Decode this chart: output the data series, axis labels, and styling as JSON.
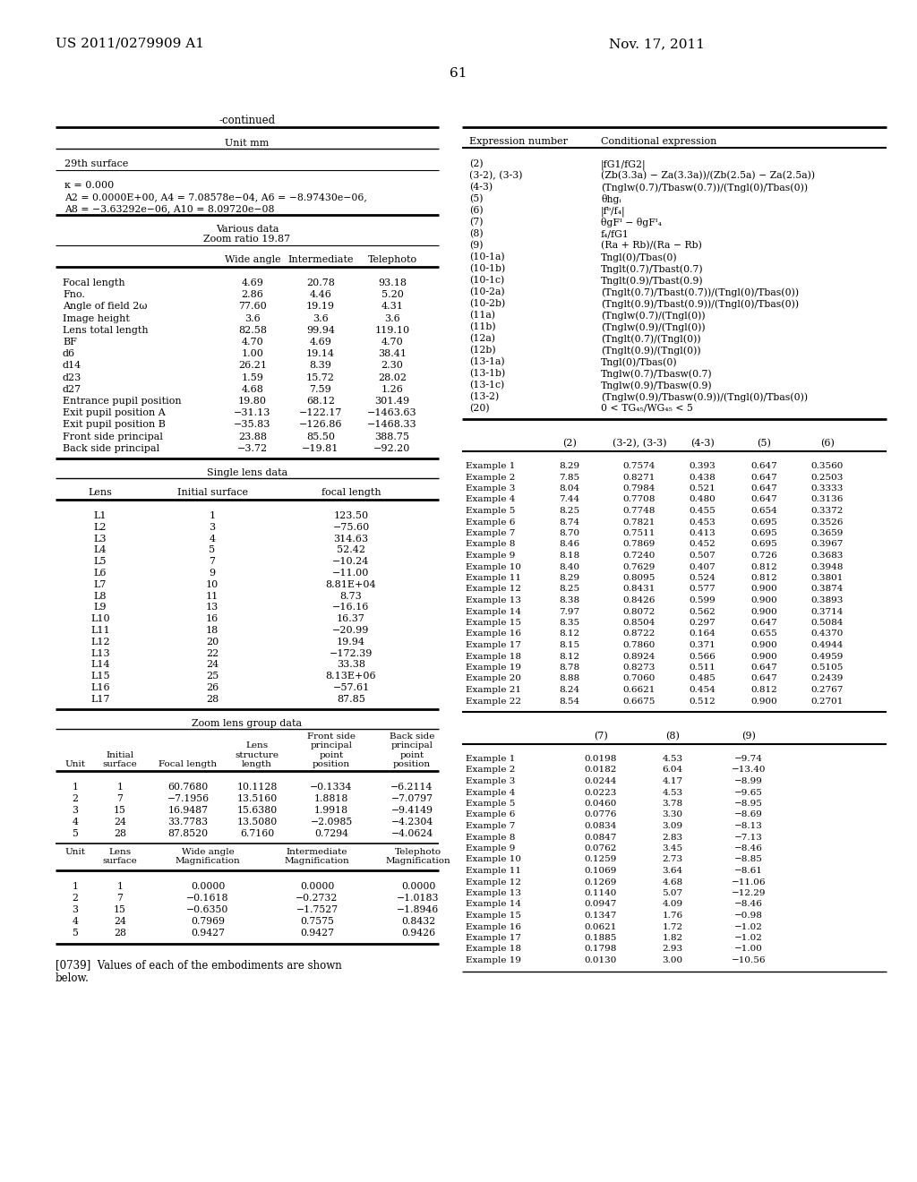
{
  "patent_number": "US 2011/0279909 A1",
  "date": "Nov. 17, 2011",
  "page_number": "61",
  "continued_label": "-continued",
  "bg_color": "#ffffff",
  "left_table_title": "Unit mm",
  "surface_label": "29th surface",
  "kappa_line": "κ = 0.000",
  "coeff_line1": "A2 = 0.0000E+00, A4 = 7.08578e−04, A6 = −8.97430e−06,",
  "coeff_line2": "A8 = −3.63292e−06, A10 = 8.09720e−08",
  "various_data_title": "Various data",
  "zoom_ratio": "Zoom ratio 19.87",
  "col_headers_various": [
    "Wide angle",
    "Intermediate",
    "Telephoto"
  ],
  "various_data_rows": [
    [
      "Focal length",
      "4.69",
      "20.78",
      "93.18"
    ],
    [
      "Fno.",
      "2.86",
      "4.46",
      "5.20"
    ],
    [
      "Angle of field 2ω",
      "77.60",
      "19.19",
      "4.31"
    ],
    [
      "Image height",
      "3.6",
      "3.6",
      "3.6"
    ],
    [
      "Lens total length",
      "82.58",
      "99.94",
      "119.10"
    ],
    [
      "BF",
      "4.70",
      "4.69",
      "4.70"
    ],
    [
      "d6",
      "1.00",
      "19.14",
      "38.41"
    ],
    [
      "d14",
      "26.21",
      "8.39",
      "2.30"
    ],
    [
      "d23",
      "1.59",
      "15.72",
      "28.02"
    ],
    [
      "d27",
      "4.68",
      "7.59",
      "1.26"
    ],
    [
      "Entrance pupil position",
      "19.80",
      "68.12",
      "301.49"
    ],
    [
      "Exit pupil position A",
      "−31.13",
      "−122.17",
      "−1463.63"
    ],
    [
      "Exit pupil position B",
      "−35.83",
      "−126.86",
      "−1468.33"
    ],
    [
      "Front side principal",
      "23.88",
      "85.50",
      "388.75"
    ],
    [
      "Back side principal",
      "−3.72",
      "−19.81",
      "−92.20"
    ]
  ],
  "single_lens_title": "Single lens data",
  "single_lens_col_headers": [
    "Lens",
    "Initial surface",
    "focal length"
  ],
  "single_lens_rows": [
    [
      "L1",
      "1",
      "123.50"
    ],
    [
      "L2",
      "3",
      "−75.60"
    ],
    [
      "L3",
      "4",
      "314.63"
    ],
    [
      "L4",
      "5",
      "52.42"
    ],
    [
      "L5",
      "7",
      "−10.24"
    ],
    [
      "L6",
      "9",
      "−11.00"
    ],
    [
      "L7",
      "10",
      "8.81E+04"
    ],
    [
      "L8",
      "11",
      "8.73"
    ],
    [
      "L9",
      "13",
      "−16.16"
    ],
    [
      "L10",
      "16",
      "16.37"
    ],
    [
      "L11",
      "18",
      "−20.99"
    ],
    [
      "L12",
      "20",
      "19.94"
    ],
    [
      "L13",
      "22",
      "−172.39"
    ],
    [
      "L14",
      "24",
      "33.38"
    ],
    [
      "L15",
      "25",
      "8.13E+06"
    ],
    [
      "L16",
      "26",
      "−57.61"
    ],
    [
      "L17",
      "28",
      "87.85"
    ]
  ],
  "zoom_lens_title": "Zoom lens group data",
  "zoom_lens_rows": [
    [
      "1",
      "1",
      "60.7680",
      "10.1128",
      "−0.1334",
      "−6.2114"
    ],
    [
      "2",
      "7",
      "−7.1956",
      "13.5160",
      "1.8818",
      "−7.0797"
    ],
    [
      "3",
      "15",
      "16.9487",
      "15.6380",
      "1.9918",
      "−9.4149"
    ],
    [
      "4",
      "24",
      "33.7783",
      "13.5080",
      "−2.0985",
      "−4.2304"
    ],
    [
      "5",
      "28",
      "87.8520",
      "6.7160",
      "0.7294",
      "−4.0624"
    ]
  ],
  "magnification_rows": [
    [
      "1",
      "1",
      "0.0000",
      "0.0000",
      "0.0000"
    ],
    [
      "2",
      "7",
      "−0.1618",
      "−0.2732",
      "−1.0183"
    ],
    [
      "3",
      "15",
      "−0.6350",
      "−1.7527",
      "−1.8946"
    ],
    [
      "4",
      "24",
      "0.7969",
      "0.7575",
      "0.8432"
    ],
    [
      "5",
      "28",
      "0.9427",
      "0.9427",
      "0.9426"
    ]
  ],
  "bottom_text_1": "[0739]  Values of each of the embodiments are shown",
  "bottom_text_2": "below.",
  "right_expr_col": "Expression number",
  "right_cond_col": "Conditional expression",
  "expressions": [
    [
      "(2)",
      "|fG1/fG2|"
    ],
    [
      "(3-2), (3-3)",
      "(Zb(3.3a) − Za(3.3a))/(Zb(2.5a) − Za(2.5a))"
    ],
    [
      "(4-3)",
      "(Tnglw(0.7)/Tbasw(0.7))/(Tngl(0)/Tbas(0))"
    ],
    [
      "(5)",
      "θhgᵢ"
    ],
    [
      "(6)",
      "|fᵇ/f₄|"
    ],
    [
      "(7)",
      "θgFᴵ − θgFᴵ₄"
    ],
    [
      "(8)",
      "f₄/fG1"
    ],
    [
      "(9)",
      "(Ra + Rb)/(Ra − Rb)"
    ],
    [
      "(10-1a)",
      "Tngl(0)/Tbas(0)"
    ],
    [
      "(10-1b)",
      "Tnglt(0.7)/Tbast(0.7)"
    ],
    [
      "(10-1c)",
      "Tnglt(0.9)/Tbast(0.9)"
    ],
    [
      "(10-2a)",
      "(Tnglt(0.7)/Tbast(0.7))/(Tngl(0)/Tbas(0))"
    ],
    [
      "(10-2b)",
      "(Tnglt(0.9)/Tbast(0.9))/(Tngl(0)/Tbas(0))"
    ],
    [
      "(11a)",
      "(Tnglw(0.7)/(Tngl(0))"
    ],
    [
      "(11b)",
      "(Tnglw(0.9)/(Tngl(0))"
    ],
    [
      "(12a)",
      "(Tnglt(0.7)/(Tngl(0))"
    ],
    [
      "(12b)",
      "(Tnglt(0.9)/(Tngl(0))"
    ],
    [
      "(13-1a)",
      "Tngl(0)/Tbas(0)"
    ],
    [
      "(13-1b)",
      "Tnglw(0.7)/Tbasw(0.7)"
    ],
    [
      "(13-1c)",
      "Tnglw(0.9)/Tbasw(0.9)"
    ],
    [
      "(13-2)",
      "(Tnglw(0.9)/Tbasw(0.9))/(Tngl(0)/Tbas(0))"
    ],
    [
      "(20)",
      "0 < TG₄₅/WG₄₅ < 5"
    ]
  ],
  "data_table2_rows": [
    [
      "Example 1",
      "8.29",
      "0.7574",
      "0.393",
      "0.647",
      "0.3560"
    ],
    [
      "Example 2",
      "7.85",
      "0.8271",
      "0.438",
      "0.647",
      "0.2503"
    ],
    [
      "Example 3",
      "8.04",
      "0.7984",
      "0.521",
      "0.647",
      "0.3333"
    ],
    [
      "Example 4",
      "7.44",
      "0.7708",
      "0.480",
      "0.647",
      "0.3136"
    ],
    [
      "Example 5",
      "8.25",
      "0.7748",
      "0.455",
      "0.654",
      "0.3372"
    ],
    [
      "Example 6",
      "8.74",
      "0.7821",
      "0.453",
      "0.695",
      "0.3526"
    ],
    [
      "Example 7",
      "8.70",
      "0.7511",
      "0.413",
      "0.695",
      "0.3659"
    ],
    [
      "Example 8",
      "8.46",
      "0.7869",
      "0.452",
      "0.695",
      "0.3967"
    ],
    [
      "Example 9",
      "8.18",
      "0.7240",
      "0.507",
      "0.726",
      "0.3683"
    ],
    [
      "Example 10",
      "8.40",
      "0.7629",
      "0.407",
      "0.812",
      "0.3948"
    ],
    [
      "Example 11",
      "8.29",
      "0.8095",
      "0.524",
      "0.812",
      "0.3801"
    ],
    [
      "Example 12",
      "8.25",
      "0.8431",
      "0.577",
      "0.900",
      "0.3874"
    ],
    [
      "Example 13",
      "8.38",
      "0.8426",
      "0.599",
      "0.900",
      "0.3893"
    ],
    [
      "Example 14",
      "7.97",
      "0.8072",
      "0.562",
      "0.900",
      "0.3714"
    ],
    [
      "Example 15",
      "8.35",
      "0.8504",
      "0.297",
      "0.647",
      "0.5084"
    ],
    [
      "Example 16",
      "8.12",
      "0.8722",
      "0.164",
      "0.655",
      "0.4370"
    ],
    [
      "Example 17",
      "8.15",
      "0.7860",
      "0.371",
      "0.900",
      "0.4944"
    ],
    [
      "Example 18",
      "8.12",
      "0.8924",
      "0.566",
      "0.900",
      "0.4959"
    ],
    [
      "Example 19",
      "8.78",
      "0.8273",
      "0.511",
      "0.647",
      "0.5105"
    ],
    [
      "Example 20",
      "8.88",
      "0.7060",
      "0.485",
      "0.647",
      "0.2439"
    ],
    [
      "Example 21",
      "8.24",
      "0.6621",
      "0.454",
      "0.812",
      "0.2767"
    ],
    [
      "Example 22",
      "8.54",
      "0.6675",
      "0.512",
      "0.900",
      "0.2701"
    ]
  ],
  "data_table3_rows": [
    [
      "Example 1",
      "0.0198",
      "4.53",
      "−9.74"
    ],
    [
      "Example 2",
      "0.0182",
      "6.04",
      "−13.40"
    ],
    [
      "Example 3",
      "0.0244",
      "4.17",
      "−8.99"
    ],
    [
      "Example 4",
      "0.0223",
      "4.53",
      "−9.65"
    ],
    [
      "Example 5",
      "0.0460",
      "3.78",
      "−8.95"
    ],
    [
      "Example 6",
      "0.0776",
      "3.30",
      "−8.69"
    ],
    [
      "Example 7",
      "0.0834",
      "3.09",
      "−8.13"
    ],
    [
      "Example 8",
      "0.0847",
      "2.83",
      "−7.13"
    ],
    [
      "Example 9",
      "0.0762",
      "3.45",
      "−8.46"
    ],
    [
      "Example 10",
      "0.1259",
      "2.73",
      "−8.85"
    ],
    [
      "Example 11",
      "0.1069",
      "3.64",
      "−8.61"
    ],
    [
      "Example 12",
      "0.1269",
      "4.68",
      "−11.06"
    ],
    [
      "Example 13",
      "0.1140",
      "5.07",
      "−12.29"
    ],
    [
      "Example 14",
      "0.0947",
      "4.09",
      "−8.46"
    ],
    [
      "Example 15",
      "0.1347",
      "1.76",
      "−0.98"
    ],
    [
      "Example 16",
      "0.0621",
      "1.72",
      "−1.02"
    ],
    [
      "Example 17",
      "0.1885",
      "1.82",
      "−1.02"
    ],
    [
      "Example 18",
      "0.1798",
      "2.93",
      "−1.00"
    ],
    [
      "Example 19",
      "0.0130",
      "3.00",
      "−10.56"
    ]
  ]
}
